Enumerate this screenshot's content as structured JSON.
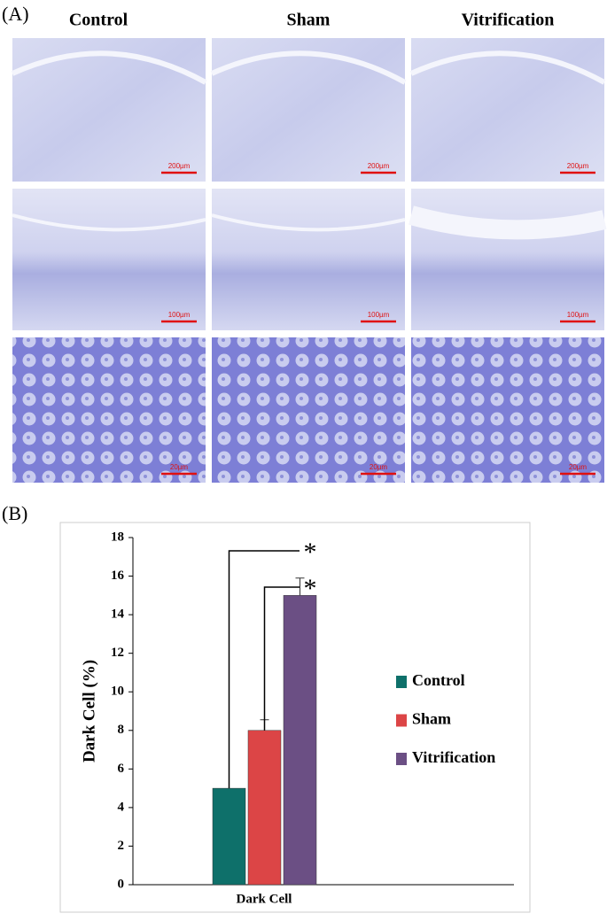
{
  "panel_a": {
    "label": "(A)",
    "columns": [
      "Control",
      "Sham",
      "Vitrification"
    ],
    "scale_bars": [
      [
        "200µm",
        "200µm",
        "200µm"
      ],
      [
        "100µm",
        "100µm",
        "100µm"
      ],
      [
        "20µm",
        "20µm",
        "20µm"
      ]
    ]
  },
  "panel_b_label": "(B)",
  "chart_data": {
    "type": "bar",
    "ylabel": "Dark Cell (%)",
    "categories": [
      "Dark Cell"
    ],
    "series": [
      {
        "name": "Control",
        "color": "#0e706a",
        "values": [
          5
        ]
      },
      {
        "name": "Sham",
        "color": "#dc4546",
        "values": [
          8
        ],
        "errors": [
          0.55
        ]
      },
      {
        "name": "Vitrification",
        "color": "#6b4f84",
        "values": [
          15
        ],
        "errors": [
          0.9
        ]
      }
    ],
    "ylim": [
      0,
      18
    ],
    "yticks": [
      0,
      2,
      4,
      6,
      8,
      10,
      12,
      14,
      16,
      18
    ],
    "annotations": [
      "*",
      "*"
    ]
  }
}
